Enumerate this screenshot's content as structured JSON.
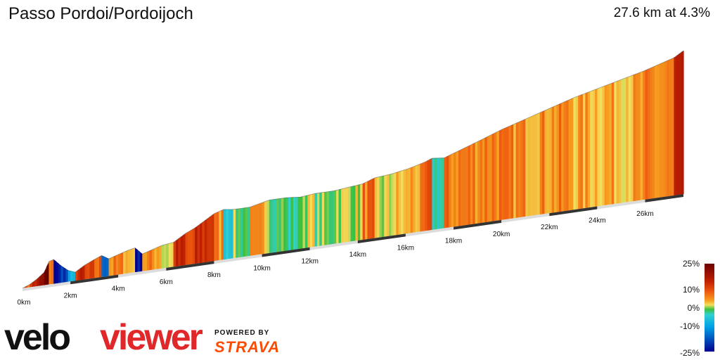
{
  "header": {
    "title": "Passo Pordoi/Pordoijoch",
    "summary": "27.6 km at 4.3%"
  },
  "chart_data": {
    "type": "area",
    "title": "Passo Pordoi/Pordoijoch",
    "subtitle": "27.6 km at 4.3%",
    "xlabel": "",
    "ylabel": "",
    "x_unit": "km",
    "x_ticks": [
      "0km",
      "2km",
      "4km",
      "6km",
      "8km",
      "10km",
      "12km",
      "14km",
      "16km",
      "18km",
      "20km",
      "22km",
      "24km",
      "26km"
    ],
    "xlim": [
      0,
      27.6
    ],
    "profile_km": [
      0,
      0.3,
      0.6,
      0.9,
      1.1,
      1.3,
      1.6,
      1.9,
      2.2,
      2.6,
      3.0,
      3.3,
      3.6,
      4.0,
      4.4,
      4.7,
      5.0,
      5.4,
      5.8,
      6.3,
      6.8,
      7.2,
      7.6,
      8.0,
      8.4,
      8.8,
      9.5,
      10.3,
      11.0,
      11.6,
      12.2,
      13.0,
      13.6,
      14.2,
      14.7,
      15.4,
      16.1,
      16.8,
      17.1,
      17.6,
      18.3,
      19.0,
      20.0,
      21.0,
      22.0,
      23.0,
      24.0,
      25.0,
      26.0,
      26.6,
      27.2,
      27.6
    ],
    "relative_height": [
      0.0,
      0.02,
      0.05,
      0.09,
      0.16,
      0.17,
      0.12,
      0.08,
      0.06,
      0.1,
      0.13,
      0.15,
      0.12,
      0.14,
      0.16,
      0.17,
      0.12,
      0.14,
      0.16,
      0.17,
      0.22,
      0.25,
      0.29,
      0.33,
      0.35,
      0.34,
      0.34,
      0.37,
      0.37,
      0.36,
      0.37,
      0.37,
      0.38,
      0.39,
      0.42,
      0.43,
      0.45,
      0.48,
      0.5,
      0.49,
      0.53,
      0.57,
      0.63,
      0.68,
      0.73,
      0.78,
      0.82,
      0.86,
      0.9,
      0.93,
      0.96,
      1.0
    ],
    "color_scale": {
      "legend": [
        "25%",
        "10%",
        "0%",
        "-10%",
        "-25%"
      ],
      "stops": [
        {
          "gradient": 25,
          "color": "#6b0000"
        },
        {
          "gradient": 15,
          "color": "#c02000"
        },
        {
          "gradient": 10,
          "color": "#ee5a10"
        },
        {
          "gradient": 6,
          "color": "#f7a020"
        },
        {
          "gradient": 3,
          "color": "#f2e060"
        },
        {
          "gradient": 0,
          "color": "#3cc040"
        },
        {
          "gradient": -4,
          "color": "#30d0d0"
        },
        {
          "gradient": -10,
          "color": "#00a0e8"
        },
        {
          "gradient": -25,
          "color": "#000090"
        }
      ]
    }
  },
  "branding": {
    "veloviewer_part1": "velo",
    "veloviewer_part2": "viewer",
    "powered_by": "POWERED BY",
    "strava": "STRAVA"
  }
}
